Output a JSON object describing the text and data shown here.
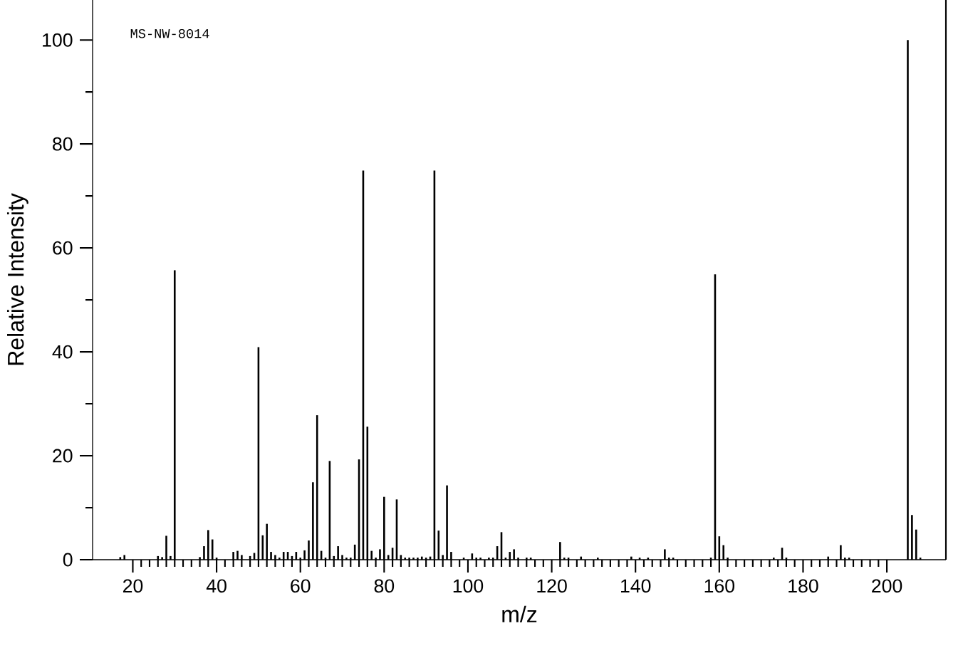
{
  "chart_data": {
    "type": "bar",
    "xlabel": "m/z",
    "ylabel": "Relative Intensity",
    "annotations": [
      "MS-NW-8014"
    ],
    "color": "#000000",
    "x": [
      17,
      18,
      26,
      27,
      28,
      29,
      30,
      36,
      37,
      38,
      39,
      40,
      44,
      45,
      46,
      48,
      49,
      50,
      51,
      52,
      53,
      54,
      55,
      56,
      57,
      58,
      59,
      60,
      61,
      62,
      63,
      64,
      65,
      66,
      67,
      68,
      69,
      70,
      71,
      72,
      73,
      74,
      75,
      76,
      77,
      78,
      79,
      80,
      81,
      82,
      83,
      84,
      85,
      86,
      87,
      88,
      89,
      90,
      91,
      92,
      93,
      94,
      95,
      96,
      99,
      101,
      102,
      103,
      105,
      106,
      107,
      108,
      109,
      110,
      111,
      112,
      114,
      115,
      122,
      123,
      124,
      127,
      131,
      139,
      141,
      143,
      147,
      148,
      149,
      158,
      159,
      160,
      161,
      162,
      173,
      175,
      176,
      186,
      189,
      190,
      191,
      205,
      206,
      207,
      208
    ],
    "values": [
      0.5,
      0.9,
      0.7,
      0.5,
      4.6,
      0.7,
      55.7,
      0.5,
      2.6,
      5.7,
      3.9,
      0.4,
      1.5,
      1.7,
      0.9,
      0.7,
      1.3,
      40.9,
      4.7,
      6.9,
      1.5,
      0.9,
      0.4,
      1.5,
      1.5,
      0.7,
      1.5,
      0.4,
      1.8,
      3.7,
      14.9,
      27.8,
      1.7,
      0.4,
      19.0,
      0.7,
      2.6,
      0.9,
      0.4,
      0.4,
      2.9,
      19.3,
      74.9,
      25.6,
      1.7,
      0.4,
      2.0,
      12.1,
      0.9,
      2.3,
      11.6,
      0.9,
      0.4,
      0.4,
      0.4,
      0.4,
      0.6,
      0.4,
      0.6,
      74.9,
      5.6,
      0.9,
      14.3,
      1.5,
      0.4,
      1.2,
      0.4,
      0.4,
      0.4,
      0.4,
      2.6,
      5.3,
      0.4,
      1.5,
      2.0,
      0.4,
      0.4,
      0.4,
      3.4,
      0.4,
      0.4,
      0.6,
      0.4,
      0.6,
      0.4,
      0.4,
      2.0,
      0.4,
      0.4,
      0.4,
      54.9,
      4.5,
      2.8,
      0.4,
      0.4,
      2.3,
      0.4,
      0.6,
      2.8,
      0.4,
      0.4,
      100,
      8.6,
      5.8,
      0.4
    ],
    "xlim": [
      10.4,
      214.1
    ],
    "ylim": [
      0,
      107.7
    ],
    "xticks": [
      20,
      40,
      60,
      80,
      100,
      120,
      140,
      160,
      180,
      200
    ],
    "yticks": [
      0,
      20,
      40,
      60,
      80,
      100
    ]
  }
}
